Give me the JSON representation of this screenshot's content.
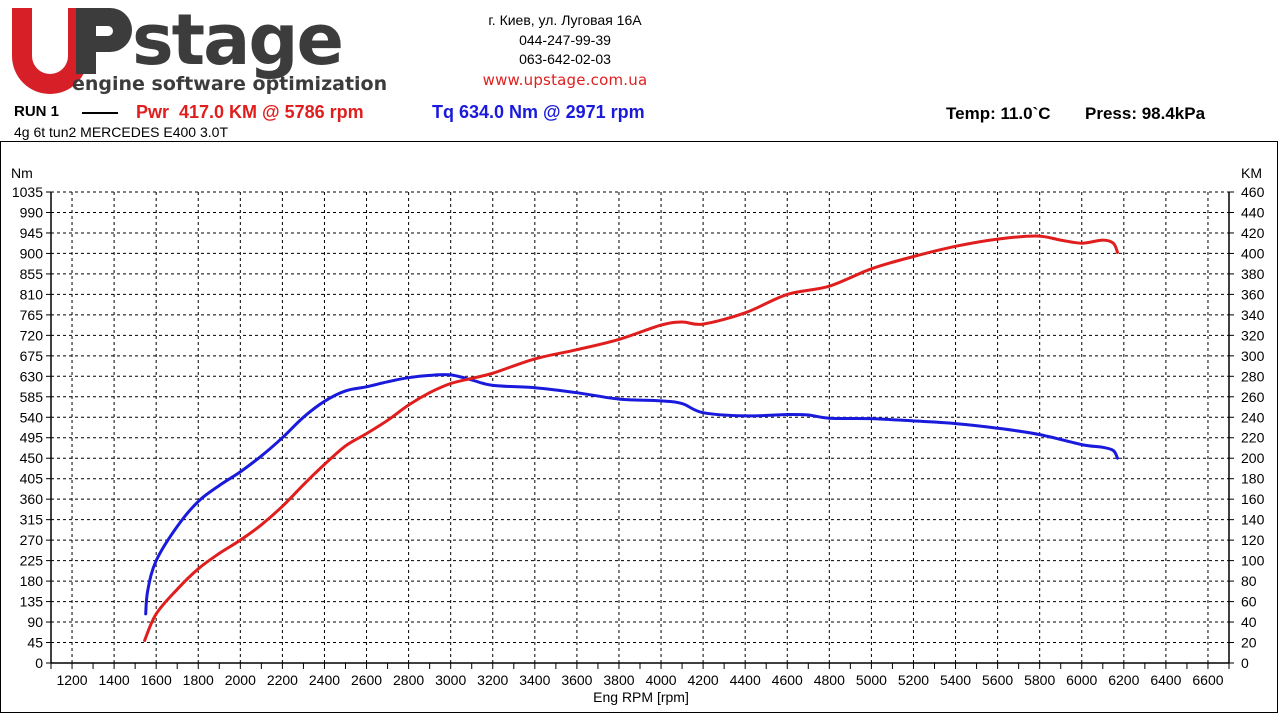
{
  "header": {
    "logo_text_main": "stage",
    "logo_tagline": "engine software optimization",
    "address": "г. Киев, ул. Луговая 16А",
    "phone1": "044-247-99-39",
    "phone2": "063-642-02-03",
    "website": "www.upstage.com.ua"
  },
  "run": {
    "label": "RUN 1",
    "power_summary": "Pwr  417.0 KM @ 5786 rpm",
    "torque_summary": "Tq 634.0 Nm @ 2971 rpm",
    "temperature": "Temp: 11.0`C",
    "pressure": "Press: 98.4kPa",
    "vehicle": "4g 6t tun2 MERCEDES E400 3.0T"
  },
  "colors": {
    "power": "#e01e1e",
    "torque": "#1a1adc",
    "logo_red": "#d61f26",
    "logo_gray": "#3c3c3c"
  },
  "chart_data": {
    "type": "line",
    "xlabel": "Eng RPM [rpm]",
    "ylabel_left": "Nm",
    "ylabel_right": "KM",
    "xlim": [
      1100,
      6700
    ],
    "x_ticks": [
      1200,
      1400,
      1600,
      1800,
      2000,
      2200,
      2400,
      2600,
      2800,
      3000,
      3200,
      3400,
      3600,
      3800,
      4000,
      4200,
      4400,
      4600,
      4800,
      5000,
      5200,
      5400,
      5600,
      5800,
      6000,
      6200,
      6400,
      6600
    ],
    "ylim_left": [
      0,
      1035
    ],
    "y_ticks_left": [
      0,
      45,
      90,
      135,
      180,
      225,
      270,
      315,
      360,
      405,
      450,
      495,
      540,
      585,
      630,
      675,
      720,
      765,
      810,
      855,
      900,
      945,
      990,
      1035
    ],
    "ylim_right": [
      0,
      460
    ],
    "y_ticks_right": [
      0,
      20,
      40,
      60,
      80,
      100,
      120,
      140,
      160,
      180,
      200,
      220,
      240,
      260,
      280,
      300,
      320,
      340,
      360,
      380,
      400,
      420,
      440,
      460
    ],
    "grid": true,
    "series": [
      {
        "name": "Tq",
        "axis": "left",
        "points": [
          [
            1550,
            108
          ],
          [
            1560,
            160
          ],
          [
            1600,
            225
          ],
          [
            1700,
            300
          ],
          [
            1800,
            355
          ],
          [
            1900,
            390
          ],
          [
            2000,
            420
          ],
          [
            2100,
            455
          ],
          [
            2200,
            495
          ],
          [
            2300,
            540
          ],
          [
            2400,
            575
          ],
          [
            2500,
            598
          ],
          [
            2600,
            607
          ],
          [
            2700,
            618
          ],
          [
            2800,
            627
          ],
          [
            2900,
            632
          ],
          [
            3000,
            633
          ],
          [
            3100,
            622
          ],
          [
            3200,
            610
          ],
          [
            3400,
            605
          ],
          [
            3600,
            594
          ],
          [
            3800,
            580
          ],
          [
            4000,
            576
          ],
          [
            4100,
            570
          ],
          [
            4200,
            550
          ],
          [
            4400,
            543
          ],
          [
            4600,
            546
          ],
          [
            4700,
            545
          ],
          [
            4800,
            538
          ],
          [
            5000,
            537
          ],
          [
            5200,
            532
          ],
          [
            5400,
            526
          ],
          [
            5600,
            516
          ],
          [
            5800,
            502
          ],
          [
            6000,
            480
          ],
          [
            6100,
            474
          ],
          [
            6150,
            467
          ],
          [
            6170,
            450
          ]
        ]
      },
      {
        "name": "Pwr",
        "axis": "right",
        "points": [
          [
            1545,
            22
          ],
          [
            1600,
            48
          ],
          [
            1700,
            72
          ],
          [
            1800,
            92
          ],
          [
            1900,
            107
          ],
          [
            2000,
            120
          ],
          [
            2100,
            135
          ],
          [
            2200,
            153
          ],
          [
            2300,
            174
          ],
          [
            2400,
            194
          ],
          [
            2500,
            212
          ],
          [
            2600,
            224
          ],
          [
            2700,
            237
          ],
          [
            2800,
            252
          ],
          [
            2900,
            264
          ],
          [
            3000,
            273
          ],
          [
            3100,
            278
          ],
          [
            3200,
            283
          ],
          [
            3400,
            297
          ],
          [
            3600,
            306
          ],
          [
            3800,
            316
          ],
          [
            4000,
            330
          ],
          [
            4100,
            333
          ],
          [
            4200,
            331
          ],
          [
            4400,
            342
          ],
          [
            4600,
            360
          ],
          [
            4800,
            368
          ],
          [
            5000,
            385
          ],
          [
            5200,
            397
          ],
          [
            5400,
            407
          ],
          [
            5600,
            414
          ],
          [
            5786,
            417
          ],
          [
            5900,
            413
          ],
          [
            6000,
            410
          ],
          [
            6100,
            413
          ],
          [
            6150,
            410
          ],
          [
            6170,
            401
          ]
        ]
      }
    ]
  }
}
